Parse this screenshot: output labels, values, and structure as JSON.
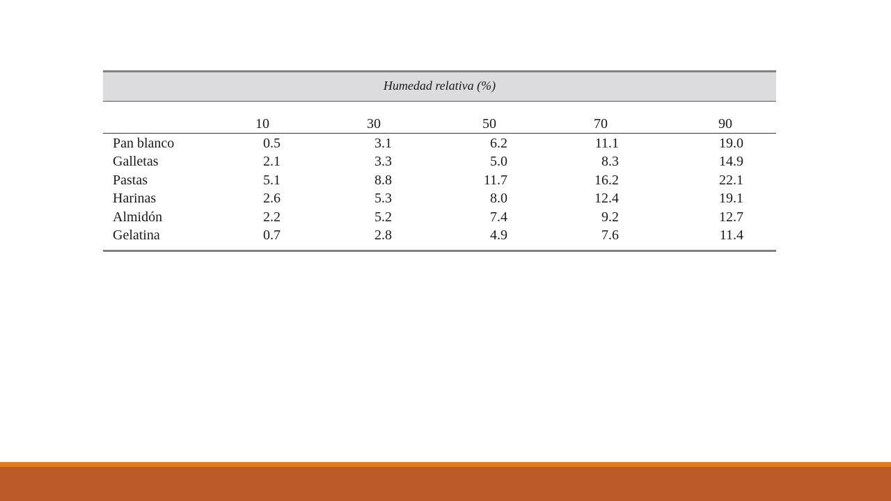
{
  "table": {
    "title": "Humedad relativa (%)",
    "columns": [
      "10",
      "30",
      "50",
      "70",
      "90"
    ],
    "rows": [
      {
        "label": "Pan blanco",
        "values": [
          "0.5",
          "3.1",
          "6.2",
          "11.1",
          "19.0"
        ]
      },
      {
        "label": "Galletas",
        "values": [
          "2.1",
          "3.3",
          "5.0",
          "8.3",
          "14.9"
        ]
      },
      {
        "label": "Pastas",
        "values": [
          "5.1",
          "8.8",
          "11.7",
          "16.2",
          "22.1"
        ]
      },
      {
        "label": "Harinas",
        "values": [
          "2.6",
          "5.3",
          "8.0",
          "12.4",
          "19.1"
        ]
      },
      {
        "label": "Almidón",
        "values": [
          "2.2",
          "5.2",
          "7.4",
          "9.2",
          "12.7"
        ]
      },
      {
        "label": "Gelatina",
        "values": [
          "0.7",
          "2.8",
          "4.9",
          "7.6",
          "11.4"
        ]
      }
    ]
  }
}
